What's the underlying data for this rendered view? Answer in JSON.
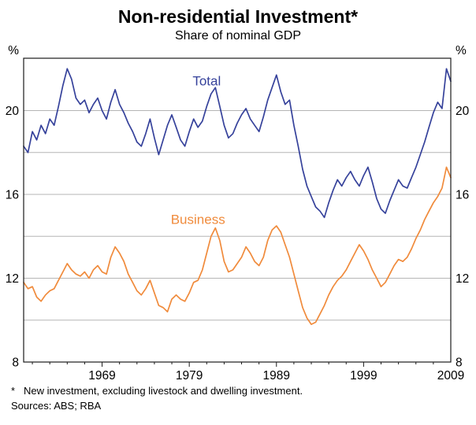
{
  "page": {
    "title": "Non-residential Investment*",
    "subtitle": "Share of nominal GDP",
    "footnote_marker": "*",
    "footnote_text": "New investment, excluding livestock and dwelling investment.",
    "sources": "Sources: ABS; RBA"
  },
  "chart_data": {
    "type": "line",
    "title": "Non-residential Investment*",
    "subtitle": "Share of nominal GDP",
    "unit": "%",
    "xlim": [
      1960,
      2009
    ],
    "ylim": [
      8,
      22.5
    ],
    "x_start": 1960,
    "x_step": 0.5,
    "y_ticks": [
      8,
      12,
      16,
      20
    ],
    "y_gridlines": [
      10,
      12,
      14,
      16,
      18,
      20
    ],
    "x_ticks": [
      1969,
      1979,
      1989,
      1999,
      2009
    ],
    "grid": true,
    "legend_position": "inline-labels",
    "colors": {
      "total": "#36429b",
      "business": "#f08b3c",
      "grid": "#b5b5b5",
      "frame": "#1a1a1a"
    },
    "series": [
      {
        "name": "Total",
        "color_key": "total",
        "label_pos": {
          "x": 1981,
          "y": 21.2
        },
        "values": [
          18.3,
          18.0,
          19.0,
          18.6,
          19.3,
          18.9,
          19.6,
          19.3,
          20.2,
          21.2,
          22.0,
          21.5,
          20.6,
          20.3,
          20.5,
          19.9,
          20.3,
          20.6,
          20.0,
          19.6,
          20.4,
          21.0,
          20.3,
          19.9,
          19.4,
          19.0,
          18.5,
          18.3,
          18.9,
          19.6,
          18.7,
          17.9,
          18.6,
          19.3,
          19.8,
          19.2,
          18.6,
          18.3,
          19.0,
          19.6,
          19.2,
          19.5,
          20.2,
          20.8,
          21.1,
          20.2,
          19.3,
          18.7,
          18.9,
          19.4,
          19.8,
          20.1,
          19.6,
          19.3,
          19.0,
          19.7,
          20.5,
          21.1,
          21.7,
          20.9,
          20.3,
          20.5,
          19.3,
          18.3,
          17.2,
          16.4,
          15.9,
          15.4,
          15.2,
          14.9,
          15.6,
          16.2,
          16.7,
          16.4,
          16.8,
          17.1,
          16.7,
          16.4,
          16.9,
          17.3,
          16.6,
          15.8,
          15.3,
          15.1,
          15.7,
          16.2,
          16.7,
          16.4,
          16.3,
          16.8,
          17.3,
          17.9,
          18.5,
          19.2,
          19.9,
          20.4,
          20.1,
          22.0,
          21.4
        ]
      },
      {
        "name": "Business",
        "color_key": "business",
        "label_pos": {
          "x": 1980,
          "y": 14.6
        },
        "values": [
          11.8,
          11.5,
          11.6,
          11.1,
          10.9,
          11.2,
          11.4,
          11.5,
          11.9,
          12.3,
          12.7,
          12.4,
          12.2,
          12.1,
          12.3,
          12.0,
          12.4,
          12.6,
          12.3,
          12.2,
          13.0,
          13.5,
          13.2,
          12.8,
          12.2,
          11.8,
          11.4,
          11.2,
          11.5,
          11.9,
          11.3,
          10.7,
          10.6,
          10.4,
          11.0,
          11.2,
          11.0,
          10.9,
          11.3,
          11.8,
          11.9,
          12.4,
          13.2,
          14.0,
          14.4,
          13.8,
          12.8,
          12.3,
          12.4,
          12.7,
          13.0,
          13.5,
          13.2,
          12.8,
          12.6,
          13.0,
          13.8,
          14.3,
          14.5,
          14.2,
          13.6,
          13.0,
          12.2,
          11.4,
          10.6,
          10.1,
          9.8,
          9.9,
          10.3,
          10.7,
          11.2,
          11.6,
          11.9,
          12.1,
          12.4,
          12.8,
          13.2,
          13.6,
          13.3,
          12.9,
          12.4,
          12.0,
          11.6,
          11.8,
          12.2,
          12.6,
          12.9,
          12.8,
          13.0,
          13.4,
          13.9,
          14.3,
          14.8,
          15.2,
          15.6,
          15.9,
          16.3,
          17.3,
          16.8
        ]
      }
    ]
  }
}
